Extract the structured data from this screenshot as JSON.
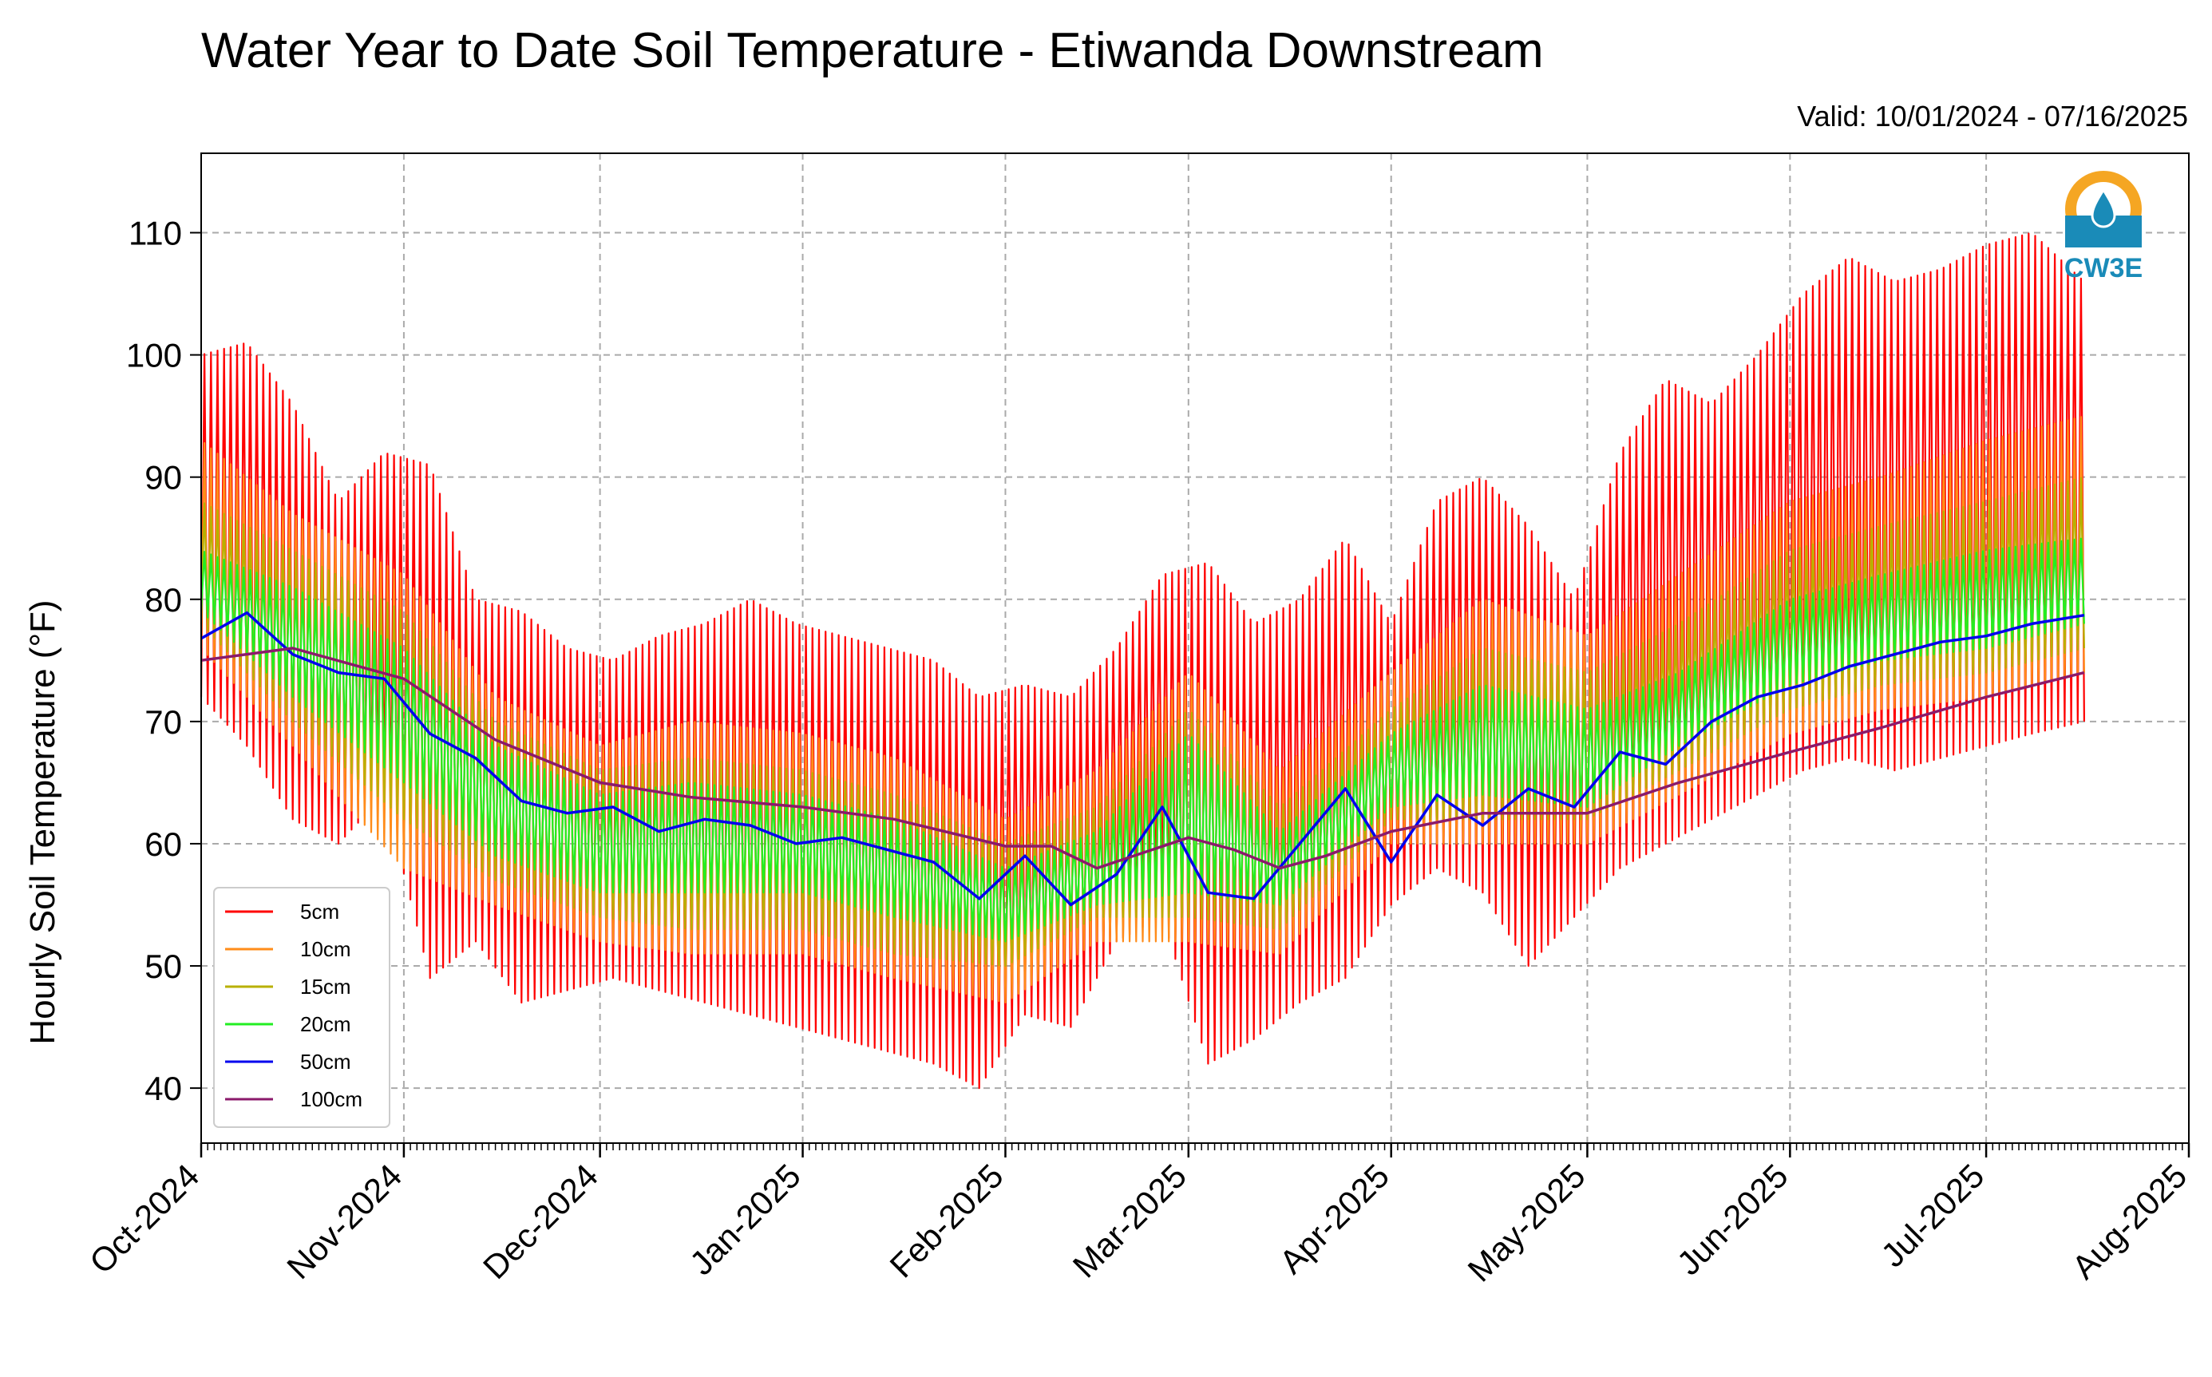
{
  "chart_data": {
    "type": "line",
    "title": "Water Year to Date Soil Temperature - Etiwanda Downstream",
    "subtitle": "Valid: 10/01/2024 - 07/16/2025",
    "ylabel": "Hourly Soil Temperature (°F)",
    "xlabel": "",
    "ylim": [
      35.5,
      116.5
    ],
    "xlim": [
      "2024-10-01",
      "2025-08-01"
    ],
    "yticks": [
      40,
      50,
      60,
      70,
      80,
      90,
      100,
      110
    ],
    "xticks": [
      {
        "date": "2024-10-01",
        "label": "Oct-2024"
      },
      {
        "date": "2024-11-01",
        "label": "Nov-2024"
      },
      {
        "date": "2024-12-01",
        "label": "Dec-2024"
      },
      {
        "date": "2025-01-01",
        "label": "Jan-2025"
      },
      {
        "date": "2025-02-01",
        "label": "Feb-2025"
      },
      {
        "date": "2025-03-01",
        "label": "Mar-2025"
      },
      {
        "date": "2025-04-01",
        "label": "Apr-2025"
      },
      {
        "date": "2025-05-01",
        "label": "May-2025"
      },
      {
        "date": "2025-06-01",
        "label": "Jun-2025"
      },
      {
        "date": "2025-07-01",
        "label": "Jul-2025"
      },
      {
        "date": "2025-08-01",
        "label": "Aug-2025"
      }
    ],
    "grid": true,
    "legend_position": "lower-left",
    "logo_text": "CW3E",
    "series": [
      {
        "name": "5cm",
        "color": "#ff0000",
        "kind": "diurnal_envelope",
        "x": [
          "2024-10-01",
          "2024-10-08",
          "2024-10-15",
          "2024-10-22",
          "2024-10-29",
          "2024-11-05",
          "2024-11-12",
          "2024-11-19",
          "2024-11-26",
          "2024-12-03",
          "2024-12-10",
          "2024-12-17",
          "2024-12-24",
          "2024-12-31",
          "2025-01-07",
          "2025-01-14",
          "2025-01-21",
          "2025-01-28",
          "2025-02-04",
          "2025-02-11",
          "2025-02-18",
          "2025-02-25",
          "2025-03-04",
          "2025-03-11",
          "2025-03-18",
          "2025-03-25",
          "2025-04-01",
          "2025-04-08",
          "2025-04-15",
          "2025-04-22",
          "2025-04-29",
          "2025-05-06",
          "2025-05-13",
          "2025-05-20",
          "2025-05-27",
          "2025-06-03",
          "2025-06-10",
          "2025-06-17",
          "2025-06-24",
          "2025-07-01",
          "2025-07-08",
          "2025-07-16"
        ],
        "max": [
          100,
          101,
          96,
          88,
          92,
          91,
          80,
          79,
          76,
          75,
          77,
          78,
          80,
          78,
          77,
          76,
          75,
          72,
          73,
          72,
          76,
          82,
          83,
          78,
          80,
          85,
          78,
          88,
          90,
          86,
          80,
          92,
          98,
          96,
          100,
          105,
          108,
          106,
          107,
          109,
          110,
          106
        ],
        "min": [
          72,
          68,
          62,
          60,
          64,
          49,
          52,
          47,
          48,
          49,
          48,
          47,
          46,
          45,
          44,
          43,
          42,
          40,
          46,
          45,
          52,
          54,
          42,
          44,
          47,
          49,
          55,
          58,
          56,
          50,
          54,
          58,
          60,
          62,
          64,
          66,
          67,
          66,
          67,
          68,
          69,
          70
        ]
      },
      {
        "name": "10cm",
        "color": "#ff8c1a",
        "kind": "diurnal_envelope",
        "x": [
          "2024-10-01",
          "2024-10-15",
          "2024-11-01",
          "2024-11-15",
          "2024-12-01",
          "2024-12-15",
          "2025-01-01",
          "2025-01-15",
          "2025-02-01",
          "2025-02-15",
          "2025-03-01",
          "2025-03-15",
          "2025-04-01",
          "2025-04-15",
          "2025-05-01",
          "2025-05-15",
          "2025-06-01",
          "2025-06-15",
          "2025-07-01",
          "2025-07-16"
        ],
        "max": [
          93,
          87,
          82,
          72,
          68,
          70,
          69,
          67,
          62,
          66,
          74,
          66,
          74,
          80,
          77,
          82,
          88,
          90,
          93,
          95
        ],
        "min": [
          76,
          68,
          58,
          55,
          52,
          51,
          51,
          49,
          47,
          52,
          52,
          51,
          60,
          60,
          60,
          64,
          69,
          71,
          72,
          74
        ]
      },
      {
        "name": "15cm",
        "color": "#b8b000",
        "kind": "diurnal_envelope",
        "x": [
          "2024-10-01",
          "2024-10-15",
          "2024-11-01",
          "2024-11-15",
          "2024-12-01",
          "2024-12-15",
          "2025-01-01",
          "2025-01-15",
          "2025-02-01",
          "2025-02-15",
          "2025-03-01",
          "2025-03-15",
          "2025-04-01",
          "2025-04-15",
          "2025-05-01",
          "2025-05-15",
          "2025-06-01",
          "2025-06-15",
          "2025-07-01",
          "2025-07-16"
        ],
        "max": [
          88,
          84,
          79,
          70,
          66,
          67,
          66,
          64,
          60,
          63,
          71,
          63,
          71,
          76,
          74,
          78,
          84,
          86,
          88,
          90
        ],
        "min": [
          78,
          70,
          62,
          57,
          54,
          53,
          53,
          51,
          50,
          54,
          54,
          53,
          62,
          62,
          62,
          66,
          71,
          73,
          74,
          76
        ]
      },
      {
        "name": "20cm",
        "color": "#22ee22",
        "kind": "diurnal_envelope",
        "x": [
          "2024-10-01",
          "2024-10-15",
          "2024-11-01",
          "2024-11-15",
          "2024-12-01",
          "2024-12-15",
          "2025-01-01",
          "2025-01-15",
          "2025-02-01",
          "2025-02-15",
          "2025-03-01",
          "2025-03-15",
          "2025-04-01",
          "2025-04-15",
          "2025-05-01",
          "2025-05-15",
          "2025-06-01",
          "2025-06-15",
          "2025-07-01",
          "2025-07-16"
        ],
        "max": [
          84,
          81,
          76,
          68,
          64,
          65,
          64,
          62,
          58,
          61,
          69,
          61,
          69,
          73,
          71,
          74,
          80,
          82,
          84,
          85
        ],
        "min": [
          79,
          72,
          65,
          59,
          56,
          56,
          56,
          54,
          52,
          55,
          56,
          55,
          63,
          64,
          63,
          68,
          73,
          75,
          76,
          78
        ]
      },
      {
        "name": "50cm",
        "color": "#0000ee",
        "kind": "line",
        "x": [
          "2024-10-01",
          "2024-10-08",
          "2024-10-15",
          "2024-10-22",
          "2024-10-29",
          "2024-11-05",
          "2024-11-12",
          "2024-11-19",
          "2024-11-26",
          "2024-12-03",
          "2024-12-10",
          "2024-12-17",
          "2024-12-24",
          "2024-12-31",
          "2025-01-07",
          "2025-01-14",
          "2025-01-21",
          "2025-01-28",
          "2025-02-04",
          "2025-02-11",
          "2025-02-18",
          "2025-02-25",
          "2025-03-04",
          "2025-03-11",
          "2025-03-18",
          "2025-03-25",
          "2025-04-01",
          "2025-04-08",
          "2025-04-15",
          "2025-04-22",
          "2025-04-29",
          "2025-05-06",
          "2025-05-13",
          "2025-05-20",
          "2025-05-27",
          "2025-06-03",
          "2025-06-10",
          "2025-06-17",
          "2025-06-24",
          "2025-07-01",
          "2025-07-08",
          "2025-07-16"
        ],
        "values": [
          76.8,
          78.9,
          75.5,
          74.0,
          73.5,
          69.0,
          67.0,
          63.5,
          62.5,
          63.0,
          61.0,
          62.0,
          61.5,
          60.0,
          60.5,
          59.5,
          58.5,
          55.5,
          59.0,
          55.0,
          57.5,
          63.0,
          56.0,
          55.5,
          60.0,
          64.5,
          58.5,
          64.0,
          61.5,
          64.5,
          63.0,
          67.5,
          66.5,
          70.0,
          72.0,
          73.0,
          74.5,
          75.5,
          76.5,
          77.0,
          78.0,
          78.7
        ]
      },
      {
        "name": "100cm",
        "color": "#8b1a6b",
        "kind": "line",
        "x": [
          "2024-10-01",
          "2024-10-15",
          "2024-11-01",
          "2024-11-15",
          "2024-12-01",
          "2024-12-15",
          "2025-01-01",
          "2025-01-15",
          "2025-02-01",
          "2025-02-08",
          "2025-02-15",
          "2025-03-01",
          "2025-03-08",
          "2025-03-15",
          "2025-03-22",
          "2025-04-01",
          "2025-04-15",
          "2025-05-01",
          "2025-05-15",
          "2025-06-01",
          "2025-06-15",
          "2025-07-01",
          "2025-07-16"
        ],
        "values": [
          75.0,
          76.0,
          73.5,
          68.5,
          65.0,
          63.8,
          63.0,
          62.0,
          59.8,
          59.8,
          58.0,
          60.5,
          59.5,
          58.0,
          59.0,
          61.0,
          62.5,
          62.5,
          65.0,
          67.5,
          69.5,
          72.0,
          74.0
        ]
      }
    ]
  }
}
